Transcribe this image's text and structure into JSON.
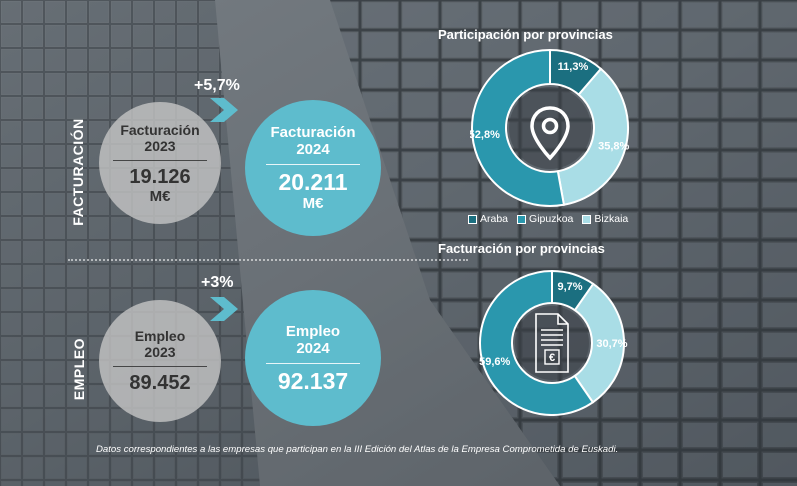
{
  "section_labels": {
    "facturacion": "FACTURACIÓN",
    "empleo": "EMPLEO"
  },
  "facturacion": {
    "prev": {
      "title_line1": "Facturación",
      "title_line2": "2023",
      "value": "19.126",
      "unit": "M€"
    },
    "curr": {
      "title_line1": "Facturación",
      "title_line2": "2024",
      "value": "20.211",
      "unit": "M€"
    },
    "growth": "+5,7%"
  },
  "empleo": {
    "prev": {
      "title_line1": "Empleo",
      "title_line2": "2023",
      "value": "89.452"
    },
    "curr": {
      "title_line1": "Empleo",
      "title_line2": "2024",
      "value": "92.137"
    },
    "growth": "+3%"
  },
  "colors": {
    "Araba": "#1b6f80",
    "Gipuzkoa": "#2a97ad",
    "Bizkaia": "#a9dde6",
    "teal_circle": "#5ebccd"
  },
  "legend": [
    "Araba",
    "Gipuzkoa",
    "Bizkaia"
  ],
  "chart_data": [
    {
      "type": "pie",
      "title": "Participación por provincias",
      "categories": [
        "Araba",
        "Bizkaia",
        "Gipuzkoa"
      ],
      "values": [
        11.3,
        35.8,
        52.8
      ],
      "labels": [
        "11,3%",
        "35,8%",
        "52,8%"
      ],
      "center_icon": "map-pin-icon",
      "legend_position": "bottom"
    },
    {
      "type": "pie",
      "title": "Facturación por provincias",
      "categories": [
        "Araba",
        "Bizkaia",
        "Gipuzkoa"
      ],
      "values": [
        9.7,
        30.7,
        59.6
      ],
      "labels": [
        "9,7%",
        "30,7%",
        "59,6%"
      ],
      "center_icon": "euro-document-icon"
    }
  ],
  "footnote": "Datos correspondientes a las empresas que participan en la III Edición del Atlas de la Empresa Comprometida de Euskadi."
}
